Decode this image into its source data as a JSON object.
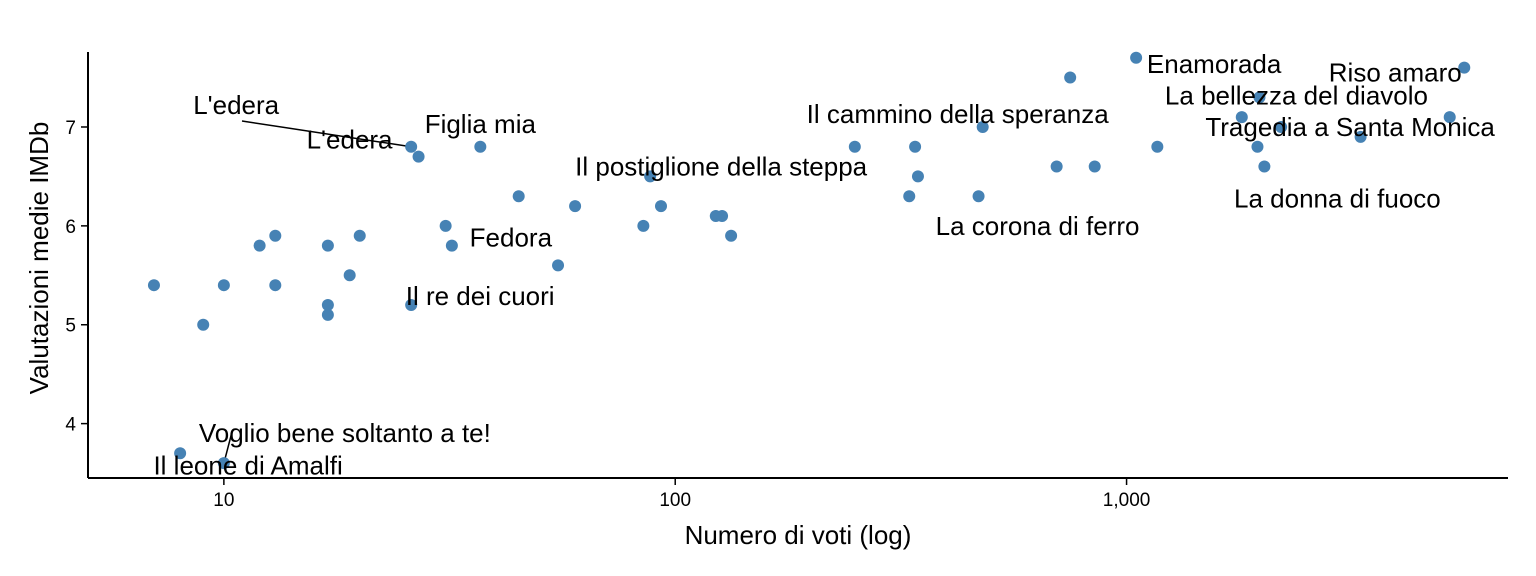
{
  "chart_data": {
    "type": "scatter",
    "title": "",
    "xlabel": "Numero di voti (log)",
    "ylabel": "Valutazioni medie IMDb",
    "x_scale": "log10",
    "xlim": [
      5,
      7000
    ],
    "ylim": [
      3.45,
      7.9
    ],
    "x_ticks": [
      10,
      100,
      1000
    ],
    "x_tick_labels": [
      "10",
      "100",
      "1,000"
    ],
    "y_ticks": [
      4,
      5,
      6,
      7
    ],
    "y_tick_labels": [
      "4",
      "5",
      "6",
      "7"
    ],
    "grid": false,
    "point_color": "#4682B4",
    "points": [
      {
        "x": 7,
        "y": 5.4
      },
      {
        "x": 8,
        "y": 3.7,
        "label": "Il leone di Amalfi"
      },
      {
        "x": 9,
        "y": 5.0
      },
      {
        "x": 10,
        "y": 5.4
      },
      {
        "x": 10,
        "y": 3.6,
        "label": "Voglio bene soltanto a te!"
      },
      {
        "x": 12,
        "y": 5.8
      },
      {
        "x": 13,
        "y": 5.9
      },
      {
        "x": 13,
        "y": 5.4
      },
      {
        "x": 17,
        "y": 5.8
      },
      {
        "x": 17,
        "y": 5.2
      },
      {
        "x": 17,
        "y": 5.1
      },
      {
        "x": 19,
        "y": 5.5
      },
      {
        "x": 20,
        "y": 5.9
      },
      {
        "x": 26,
        "y": 5.2,
        "label": "Il re dei cuori"
      },
      {
        "x": 26,
        "y": 6.8,
        "label": "L'edera"
      },
      {
        "x": 27,
        "y": 6.7,
        "label": "L'edera"
      },
      {
        "x": 31,
        "y": 6.0
      },
      {
        "x": 32,
        "y": 5.8,
        "label": "Fedora"
      },
      {
        "x": 37,
        "y": 6.8,
        "label": "Figlia mia"
      },
      {
        "x": 45,
        "y": 6.3
      },
      {
        "x": 55,
        "y": 5.6
      },
      {
        "x": 60,
        "y": 6.2
      },
      {
        "x": 85,
        "y": 6.0
      },
      {
        "x": 88,
        "y": 6.5,
        "label": "Il postiglione della steppa"
      },
      {
        "x": 93,
        "y": 6.2
      },
      {
        "x": 123,
        "y": 6.1
      },
      {
        "x": 127,
        "y": 6.1
      },
      {
        "x": 133,
        "y": 5.9
      },
      {
        "x": 250,
        "y": 6.8
      },
      {
        "x": 330,
        "y": 6.3
      },
      {
        "x": 340,
        "y": 6.8
      },
      {
        "x": 345,
        "y": 6.5
      },
      {
        "x": 470,
        "y": 6.3,
        "label": "La corona di ferro"
      },
      {
        "x": 480,
        "y": 7.0,
        "label": "Il cammino della speranza"
      },
      {
        "x": 700,
        "y": 6.6
      },
      {
        "x": 750,
        "y": 7.5
      },
      {
        "x": 850,
        "y": 6.6
      },
      {
        "x": 1050,
        "y": 7.7,
        "label": "Enamorada"
      },
      {
        "x": 1170,
        "y": 6.8
      },
      {
        "x": 1800,
        "y": 7.1
      },
      {
        "x": 1950,
        "y": 6.8
      },
      {
        "x": 1970,
        "y": 7.3,
        "label": "La bellezza del diavolo"
      },
      {
        "x": 2020,
        "y": 6.6,
        "label": "La donna di fuoco"
      },
      {
        "x": 2200,
        "y": 7.0,
        "label": "Tragedia a Santa Monica"
      },
      {
        "x": 3300,
        "y": 6.9
      },
      {
        "x": 5200,
        "y": 7.1
      },
      {
        "x": 5600,
        "y": 7.6,
        "label": "Riso amaro"
      }
    ]
  }
}
